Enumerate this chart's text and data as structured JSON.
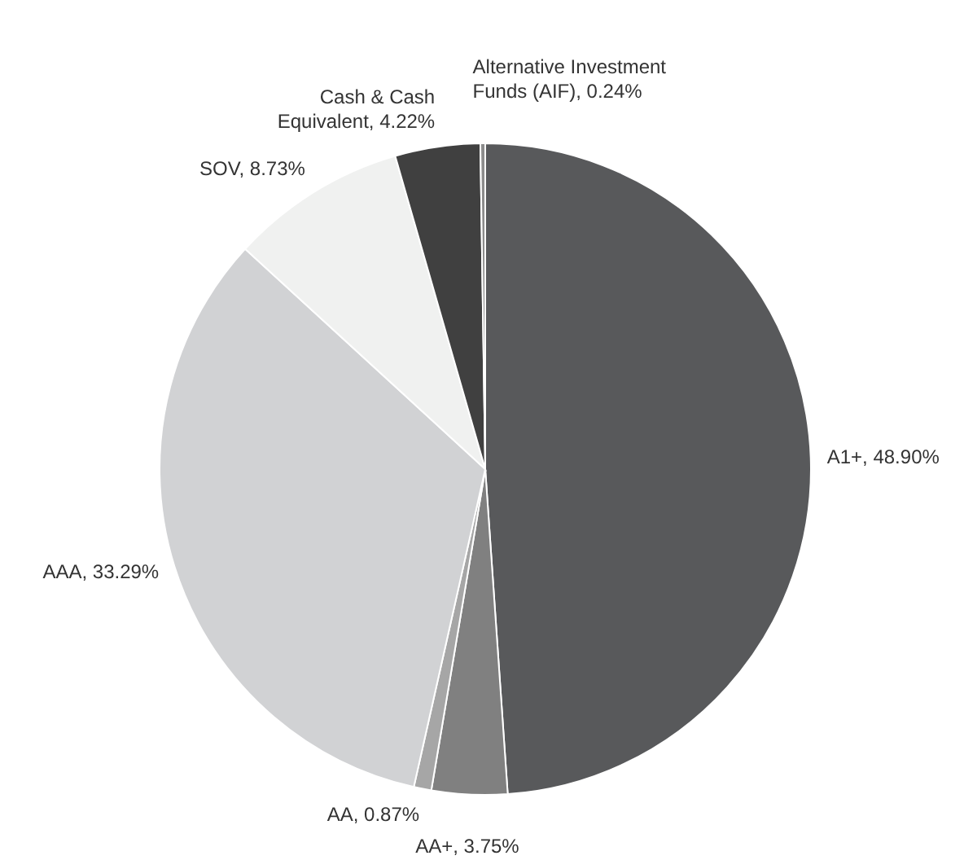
{
  "chart_data": {
    "type": "pie",
    "categories": [
      "A1+",
      "AA+",
      "AA",
      "AAA",
      "SOV",
      "Cash & Cash Equivalent",
      "Alternative Investment Funds (AIF)"
    ],
    "values": [
      48.9,
      3.75,
      0.87,
      33.29,
      8.73,
      4.22,
      0.24
    ],
    "value_labels": [
      "48.90%",
      "3.75%",
      "0.87%",
      "33.29%",
      "8.73%",
      "4.22%",
      "0.24%"
    ],
    "colors": [
      "#58595b",
      "#808080",
      "#a6a6a6",
      "#d1d2d4",
      "#f0f1f0",
      "#404040",
      "#8c8c8c"
    ],
    "legend": false
  }
}
